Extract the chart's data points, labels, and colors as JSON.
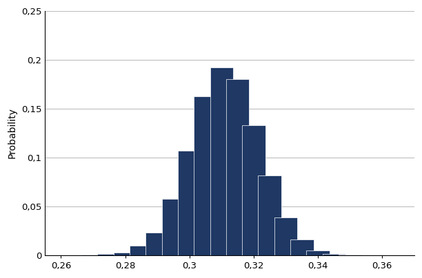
{
  "bar_centers": [
    0.27,
    0.275,
    0.28,
    0.285,
    0.29,
    0.295,
    0.3,
    0.305,
    0.31,
    0.315,
    0.32,
    0.325,
    0.33,
    0.335,
    0.34,
    0.345,
    0.35,
    0.355
  ],
  "bar_heights": [
    0.0003,
    0.001,
    0.003,
    0.01,
    0.023,
    0.058,
    0.107,
    0.163,
    0.192,
    0.18,
    0.133,
    0.082,
    0.039,
    0.016,
    0.005,
    0.001,
    0.0003,
    0.0001
  ],
  "bar_width": 0.0072,
  "bar_color": "#1F3864",
  "bar_edgecolor": "#FFFFFF",
  "ylabel": "Probability",
  "xlim": [
    0.255,
    0.37
  ],
  "ylim": [
    0,
    0.25
  ],
  "yticks": [
    0,
    0.05,
    0.1,
    0.15,
    0.2,
    0.25
  ],
  "ytick_labels": [
    "0",
    "0,05",
    "0,1",
    "0,15",
    "0,2",
    "0,25"
  ],
  "xticks": [
    0.26,
    0.28,
    0.3,
    0.32,
    0.34,
    0.36
  ],
  "xtick_labels": [
    "0,26",
    "0,28",
    "0,3",
    "0,32",
    "0,34",
    "0,36"
  ],
  "grid_color": "#BEBEBE",
  "grid_linewidth": 0.8,
  "background_color": "#FFFFFF",
  "ylabel_fontsize": 10,
  "tick_fontsize": 9.5,
  "left_spine_color": "#000000",
  "bottom_spine_color": "#000000"
}
